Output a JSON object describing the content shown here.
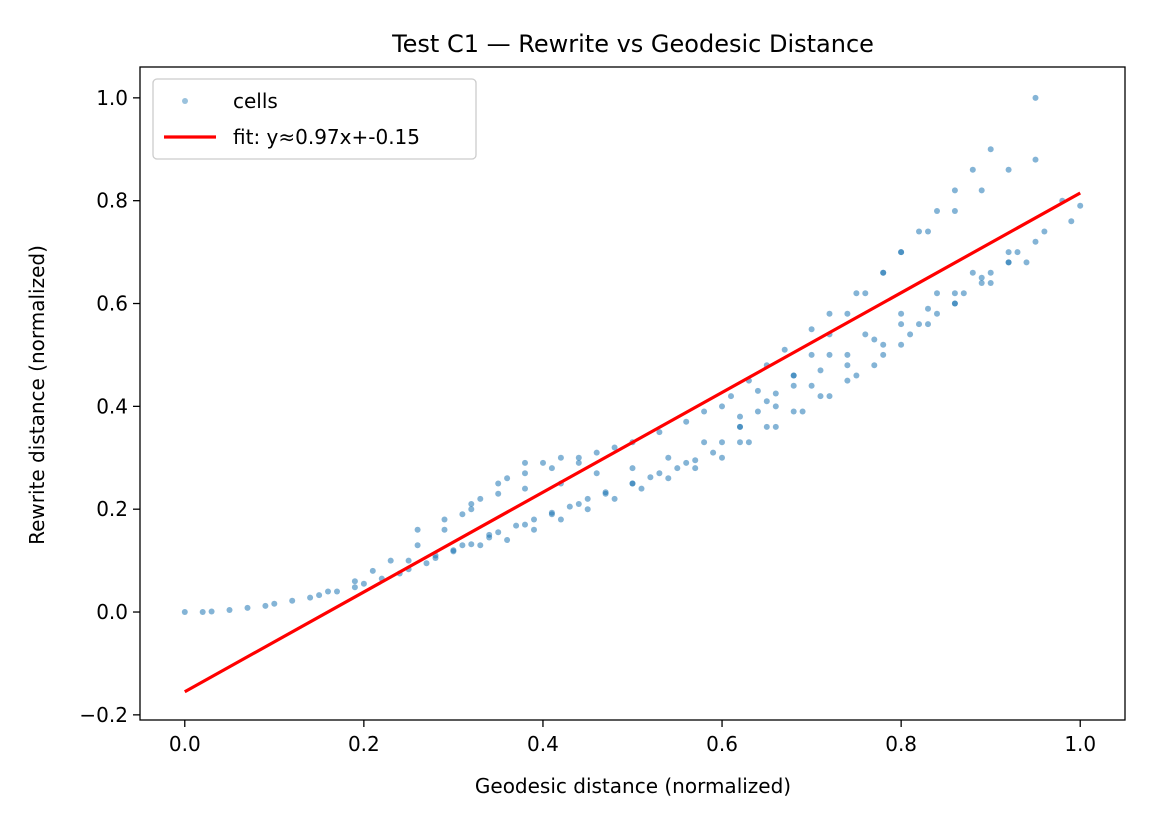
{
  "chart_data": {
    "type": "scatter",
    "title": "Test C1 — Rewrite vs Geodesic Distance",
    "xlabel": "Geodesic distance (normalized)",
    "ylabel": "Rewrite distance (normalized)",
    "xlim": [
      -0.05,
      1.05
    ],
    "ylim": [
      -0.21,
      1.06
    ],
    "xticks": [
      0.0,
      0.2,
      0.4,
      0.6,
      0.8,
      1.0
    ],
    "xtick_labels": [
      "0.0",
      "0.2",
      "0.4",
      "0.6",
      "0.8",
      "1.0"
    ],
    "yticks": [
      -0.2,
      0.0,
      0.2,
      0.4,
      0.6,
      0.8,
      1.0
    ],
    "ytick_labels": [
      "−0.2",
      "0.0",
      "0.2",
      "0.4",
      "0.6",
      "0.8",
      "1.0"
    ],
    "grid": false,
    "legend_position": "upper-left",
    "series": [
      {
        "name": "cells",
        "kind": "scatter",
        "color": "#1f77b4",
        "x": [
          0.0,
          0.02,
          0.03,
          0.05,
          0.07,
          0.09,
          0.1,
          0.12,
          0.14,
          0.15,
          0.17,
          0.19,
          0.2,
          0.22,
          0.24,
          0.25,
          0.27,
          0.28,
          0.3,
          0.32,
          0.34,
          0.35,
          0.37,
          0.39,
          0.41,
          0.43,
          0.45,
          0.47,
          0.5,
          0.52,
          0.55,
          0.57,
          0.6,
          0.62,
          0.64,
          0.66,
          0.68,
          0.7,
          0.72,
          0.74,
          0.76,
          0.78,
          0.8,
          0.82,
          0.84,
          0.86,
          0.88,
          0.9,
          0.95,
          0.16,
          0.19,
          0.21,
          0.23,
          0.26,
          0.29,
          0.31,
          0.33,
          0.36,
          0.38,
          0.4,
          0.42,
          0.44,
          0.46,
          0.48,
          0.5,
          0.53,
          0.56,
          0.58,
          0.61,
          0.63,
          0.65,
          0.67,
          0.7,
          0.72,
          0.75,
          0.78,
          0.8,
          0.83,
          0.86,
          0.89,
          0.92,
          0.95,
          0.98,
          1.0,
          0.3,
          0.33,
          0.36,
          0.39,
          0.42,
          0.45,
          0.48,
          0.51,
          0.54,
          0.57,
          0.6,
          0.63,
          0.66,
          0.69,
          0.72,
          0.75,
          0.78,
          0.81,
          0.84,
          0.87,
          0.9,
          0.93,
          0.96,
          0.99,
          0.25,
          0.28,
          0.31,
          0.34,
          0.38,
          0.41,
          0.44,
          0.47,
          0.5,
          0.53,
          0.56,
          0.59,
          0.62,
          0.65,
          0.68,
          0.71,
          0.74,
          0.77,
          0.8,
          0.83,
          0.86,
          0.89,
          0.92,
          0.95,
          0.32,
          0.35,
          0.38,
          0.42,
          0.46,
          0.5,
          0.54,
          0.58,
          0.62,
          0.66,
          0.7,
          0.74,
          0.78,
          0.82,
          0.86,
          0.9,
          0.94,
          0.35,
          0.38,
          0.41,
          0.44,
          0.62,
          0.65,
          0.68,
          0.71,
          0.74,
          0.77,
          0.8,
          0.83,
          0.86,
          0.89,
          0.92,
          0.26,
          0.29,
          0.32,
          0.6,
          0.64,
          0.68,
          0.72,
          0.76,
          0.8,
          0.84,
          0.88,
          0.92
        ],
        "y": [
          0.0,
          0.0,
          0.001,
          0.004,
          0.008,
          0.012,
          0.016,
          0.022,
          0.028,
          0.033,
          0.04,
          0.048,
          0.055,
          0.065,
          0.075,
          0.083,
          0.095,
          0.105,
          0.118,
          0.132,
          0.145,
          0.155,
          0.168,
          0.18,
          0.193,
          0.205,
          0.22,
          0.233,
          0.25,
          0.262,
          0.28,
          0.295,
          0.33,
          0.36,
          0.39,
          0.425,
          0.46,
          0.5,
          0.54,
          0.58,
          0.62,
          0.66,
          0.7,
          0.74,
          0.78,
          0.82,
          0.86,
          0.9,
          1.0,
          0.04,
          0.06,
          0.08,
          0.1,
          0.13,
          0.16,
          0.19,
          0.22,
          0.26,
          0.29,
          0.29,
          0.3,
          0.3,
          0.31,
          0.32,
          0.33,
          0.35,
          0.37,
          0.39,
          0.42,
          0.45,
          0.48,
          0.51,
          0.55,
          0.58,
          0.62,
          0.66,
          0.7,
          0.74,
          0.78,
          0.82,
          0.86,
          0.88,
          0.8,
          0.79,
          0.12,
          0.13,
          0.14,
          0.16,
          0.18,
          0.2,
          0.22,
          0.24,
          0.26,
          0.28,
          0.3,
          0.33,
          0.36,
          0.39,
          0.42,
          0.46,
          0.5,
          0.54,
          0.58,
          0.62,
          0.66,
          0.7,
          0.74,
          0.76,
          0.1,
          0.11,
          0.13,
          0.15,
          0.17,
          0.19,
          0.21,
          0.23,
          0.25,
          0.27,
          0.29,
          0.31,
          0.33,
          0.36,
          0.39,
          0.42,
          0.45,
          0.48,
          0.52,
          0.56,
          0.6,
          0.64,
          0.68,
          0.72,
          0.21,
          0.23,
          0.24,
          0.25,
          0.27,
          0.28,
          0.3,
          0.33,
          0.36,
          0.4,
          0.44,
          0.48,
          0.52,
          0.56,
          0.6,
          0.64,
          0.68,
          0.25,
          0.27,
          0.28,
          0.29,
          0.38,
          0.41,
          0.44,
          0.47,
          0.5,
          0.53,
          0.56,
          0.59,
          0.62,
          0.65,
          0.68,
          0.16,
          0.18,
          0.2,
          0.4,
          0.43,
          0.46,
          0.5,
          0.54,
          0.58,
          0.62,
          0.66,
          0.7
        ]
      },
      {
        "name": "fit: y≈0.97x+-0.15",
        "kind": "line",
        "color": "#ff0000",
        "x": [
          0.0,
          1.0
        ],
        "y": [
          -0.155,
          0.815
        ]
      }
    ]
  }
}
